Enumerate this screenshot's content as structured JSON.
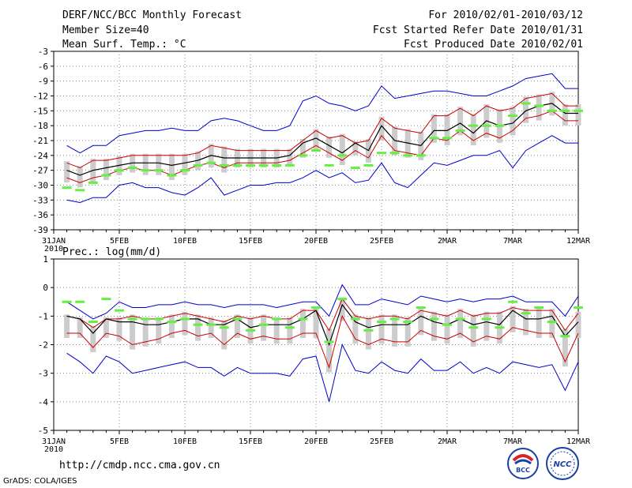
{
  "header": {
    "left_line1": "DERF/NCC/BCC Monthly Forecast",
    "left_line2": "Member Size=40",
    "left_line3": "Mean Surf. Temp.: °C",
    "right_line1": "For 2010/02/01-2010/03/12",
    "right_line2": "Fcst Started Refer Date 2010/01/31",
    "right_line3": "Fcst Produced Date 2010/02/01"
  },
  "footer": {
    "url": "http://cmdp.ncc.cma.gov.cn",
    "credit": "GrADS: COLA/IGES",
    "logo_bcc": "BCC",
    "logo_ncc": "NCC"
  },
  "colors": {
    "envelope_outer": "#0000cc",
    "envelope_inner": "#cc0000",
    "mean_line": "#000000",
    "box": "#cccccc",
    "observed": "#66ee44",
    "grid": "#888888"
  },
  "chart_data": [
    {
      "type": "line",
      "title": "Mean Surf. Temp.: °C",
      "x": [
        "31JAN",
        "1FEB",
        "2FEB",
        "3FEB",
        "4FEB",
        "5FEB",
        "6FEB",
        "7FEB",
        "8FEB",
        "9FEB",
        "10FEB",
        "11FEB",
        "12FEB",
        "13FEB",
        "14FEB",
        "15FEB",
        "16FEB",
        "17FEB",
        "18FEB",
        "19FEB",
        "20FEB",
        "21FEB",
        "22FEB",
        "23FEB",
        "24FEB",
        "25FEB",
        "26FEB",
        "27FEB",
        "28FEB",
        "1MAR",
        "2MAR",
        "3MAR",
        "4MAR",
        "5MAR",
        "6MAR",
        "7MAR",
        "8MAR",
        "9MAR",
        "10MAR",
        "11MAR",
        "12MAR"
      ],
      "xtick_labels": [
        "31JAN",
        "5FEB",
        "10FEB",
        "15FEB",
        "20FEB",
        "25FEB",
        "2MAR",
        "7MAR",
        "12MAR"
      ],
      "xtick_sublabel": "2010",
      "ylim": [
        -39,
        -3
      ],
      "yticks": [
        -3,
        -6,
        -9,
        -12,
        -15,
        -18,
        -21,
        -24,
        -27,
        -30,
        -33,
        -36,
        -39
      ],
      "series": [
        {
          "name": "max",
          "values": [
            null,
            -22,
            -23.5,
            -22,
            -22,
            -20,
            -19.5,
            -19,
            -19,
            -18.5,
            -19,
            -19,
            -17,
            -16.5,
            -17,
            -18,
            -19,
            -19,
            -18,
            -13,
            -12,
            -13.5,
            -14,
            -15,
            -14,
            -10,
            -12.5,
            -12,
            -11.5,
            -11,
            -11,
            -11.5,
            -12,
            -12,
            -11,
            -10,
            -8.5,
            -8,
            -7.5,
            -10.5,
            -10.5
          ]
        },
        {
          "name": "upper",
          "values": [
            null,
            -25.5,
            -26.5,
            -25,
            -25,
            -24.5,
            -24,
            -24,
            -24,
            -24,
            -24,
            -23.5,
            -22,
            -22.5,
            -23,
            -23,
            -23,
            -23,
            -23,
            -21,
            -19,
            -20.5,
            -20,
            -21.5,
            -21,
            -16.5,
            -18.5,
            -19,
            -19.5,
            -16,
            -16,
            -14.5,
            -16,
            -14,
            -15,
            -14.5,
            -12.5,
            -12,
            -11.5,
            -14,
            -14
          ]
        },
        {
          "name": "mean",
          "values": [
            null,
            -27,
            -28,
            -27,
            -26.5,
            -26,
            -25.5,
            -25.5,
            -25.5,
            -26,
            -25.5,
            -25,
            -24,
            -24.5,
            -24.5,
            -24.5,
            -24.5,
            -24.5,
            -24,
            -21.5,
            -20.5,
            -22,
            -23.5,
            -21.5,
            -23,
            -18,
            -21,
            -21.5,
            -22,
            -19,
            -19,
            -17.5,
            -19.5,
            -17,
            -18,
            -17.5,
            -15,
            -14,
            -13.5,
            -15.5,
            -15.5
          ]
        },
        {
          "name": "lower",
          "values": [
            null,
            -28.5,
            -29.5,
            -28.5,
            -28,
            -27,
            -26.5,
            -27,
            -27,
            -28,
            -27,
            -26,
            -25.5,
            -26.5,
            -25.5,
            -25.5,
            -25.5,
            -25.5,
            -25,
            -23.5,
            -22,
            -23.5,
            -25,
            -23,
            -24.5,
            -20,
            -23,
            -23.5,
            -24,
            -20.5,
            -21,
            -19,
            -21,
            -19.5,
            -20.5,
            -19,
            -16.5,
            -16,
            -15,
            -17,
            -17
          ]
        },
        {
          "name": "min",
          "values": [
            null,
            -33,
            -33.5,
            -32.5,
            -32.5,
            -30,
            -29.5,
            -30.5,
            -30.5,
            -31.5,
            -32,
            -30.5,
            -28.5,
            -32,
            -31,
            -30,
            -30,
            -29.5,
            -29.5,
            -28.5,
            -27,
            -28.5,
            -27.5,
            -29.5,
            -29,
            -25.5,
            -29.5,
            -30.5,
            -28,
            -25.5,
            -26,
            -25,
            -24,
            -24,
            -23,
            -26.5,
            -23,
            -21.5,
            -20,
            -21.5,
            -21.5
          ]
        },
        {
          "name": "observed",
          "values": [
            null,
            -30.5,
            -31,
            -29.5,
            -28,
            -27,
            -26.5,
            -27,
            -27,
            -28,
            -27,
            -26,
            -25.5,
            -26,
            -26,
            -26,
            -26,
            -26,
            -26,
            -24,
            -23,
            -26,
            -24,
            -26.5,
            -26,
            -23.5,
            -23.5,
            -24,
            -24,
            -20.5,
            -20.5,
            -19,
            -18,
            -18,
            -18,
            -16,
            -13.5,
            -14,
            -15,
            -15,
            -15
          ]
        }
      ]
    },
    {
      "type": "line",
      "title": "Prec.: log(mm/d)",
      "x": [
        "31JAN",
        "1FEB",
        "2FEB",
        "3FEB",
        "4FEB",
        "5FEB",
        "6FEB",
        "7FEB",
        "8FEB",
        "9FEB",
        "10FEB",
        "11FEB",
        "12FEB",
        "13FEB",
        "14FEB",
        "15FEB",
        "16FEB",
        "17FEB",
        "18FEB",
        "19FEB",
        "20FEB",
        "21FEB",
        "22FEB",
        "23FEB",
        "24FEB",
        "25FEB",
        "26FEB",
        "27FEB",
        "28FEB",
        "1MAR",
        "2MAR",
        "3MAR",
        "4MAR",
        "5MAR",
        "6MAR",
        "7MAR",
        "8MAR",
        "9MAR",
        "10MAR",
        "11MAR",
        "12MAR"
      ],
      "xtick_labels": [
        "31JAN",
        "5FEB",
        "10FEB",
        "15FEB",
        "20FEB",
        "25FEB",
        "2MAR",
        "7MAR",
        "12MAR"
      ],
      "xtick_sublabel": "2010",
      "ylim": [
        -5,
        1
      ],
      "yticks": [
        1,
        0,
        -1,
        -2,
        -3,
        -4,
        -5
      ],
      "series": [
        {
          "name": "max",
          "values": [
            null,
            -0.5,
            -0.8,
            -1.1,
            -0.9,
            -0.5,
            -0.7,
            -0.7,
            -0.6,
            -0.6,
            -0.5,
            -0.6,
            -0.6,
            -0.7,
            -0.6,
            -0.6,
            -0.6,
            -0.7,
            -0.6,
            -0.5,
            -0.5,
            -1.0,
            0.1,
            -0.6,
            -0.6,
            -0.4,
            -0.5,
            -0.6,
            -0.3,
            -0.4,
            -0.5,
            -0.4,
            -0.5,
            -0.4,
            -0.4,
            -0.3,
            -0.5,
            -0.5,
            -0.5,
            -1.0,
            -0.3
          ]
        },
        {
          "name": "upper",
          "values": [
            null,
            -1.0,
            -1.1,
            -1.4,
            -1.1,
            -1.1,
            -1.0,
            -1.1,
            -1.1,
            -1.0,
            -0.9,
            -1.0,
            -1.1,
            -1.2,
            -1.0,
            -1.1,
            -1.0,
            -1.1,
            -1.1,
            -0.8,
            -0.8,
            -1.5,
            -0.4,
            -1.0,
            -1.1,
            -1.0,
            -1.0,
            -1.1,
            -0.8,
            -0.9,
            -1.0,
            -0.8,
            -1.0,
            -0.9,
            -0.9,
            -0.7,
            -0.8,
            -0.8,
            -0.8,
            -1.5,
            -0.9
          ]
        },
        {
          "name": "mean",
          "values": [
            null,
            -1.0,
            -1.1,
            -1.6,
            -1.1,
            -1.2,
            -1.2,
            -1.3,
            -1.3,
            -1.2,
            -1.1,
            -1.1,
            -1.3,
            -1.3,
            -1.1,
            -1.4,
            -1.3,
            -1.3,
            -1.3,
            -1.1,
            -0.8,
            -2.0,
            -0.6,
            -1.2,
            -1.4,
            -1.3,
            -1.3,
            -1.3,
            -1.0,
            -1.2,
            -1.3,
            -1.1,
            -1.3,
            -1.2,
            -1.3,
            -0.8,
            -1.1,
            -1.1,
            -1.0,
            -1.7,
            -1.2
          ]
        },
        {
          "name": "lower",
          "values": [
            null,
            -1.6,
            -1.6,
            -2.1,
            -1.6,
            -1.7,
            -2.0,
            -1.9,
            -1.8,
            -1.6,
            -1.5,
            -1.7,
            -1.6,
            -2.0,
            -1.6,
            -1.8,
            -1.7,
            -1.8,
            -1.8,
            -1.6,
            -1.6,
            -2.8,
            -1.0,
            -1.8,
            -2.0,
            -1.8,
            -1.9,
            -1.9,
            -1.5,
            -1.7,
            -1.8,
            -1.6,
            -1.9,
            -1.7,
            -1.8,
            -1.4,
            -1.5,
            -1.6,
            -1.6,
            -2.6,
            -1.6
          ]
        },
        {
          "name": "min",
          "values": [
            null,
            -2.3,
            -2.6,
            -3.0,
            -2.4,
            -2.6,
            -3.0,
            -2.9,
            -2.8,
            -2.7,
            -2.6,
            -2.8,
            -2.8,
            -3.1,
            -2.8,
            -3.0,
            -3.0,
            -3.0,
            -3.1,
            -2.5,
            -2.4,
            -4.0,
            -2.0,
            -2.9,
            -3.0,
            -2.6,
            -2.9,
            -3.0,
            -2.5,
            -2.9,
            -2.9,
            -2.6,
            -3.0,
            -2.8,
            -3.0,
            -2.6,
            -2.7,
            -2.8,
            -2.7,
            -3.6,
            -2.6
          ]
        },
        {
          "name": "observed",
          "values": [
            null,
            -0.5,
            -0.5,
            -1.2,
            -0.4,
            -0.8,
            -1.1,
            -1.1,
            -1.1,
            -1.2,
            -1.1,
            -1.3,
            -1.3,
            -1.4,
            -1.1,
            -1.5,
            -1.3,
            -1.1,
            -1.4,
            -1.1,
            -0.7,
            -1.9,
            -0.4,
            -1.1,
            -1.5,
            -1.2,
            -1.1,
            -1.2,
            -0.7,
            -1.1,
            -1.3,
            -1.1,
            -1.4,
            -1.1,
            -1.4,
            -0.5,
            -0.9,
            -0.7,
            -1.2,
            -1.7,
            -0.7
          ]
        }
      ]
    }
  ]
}
